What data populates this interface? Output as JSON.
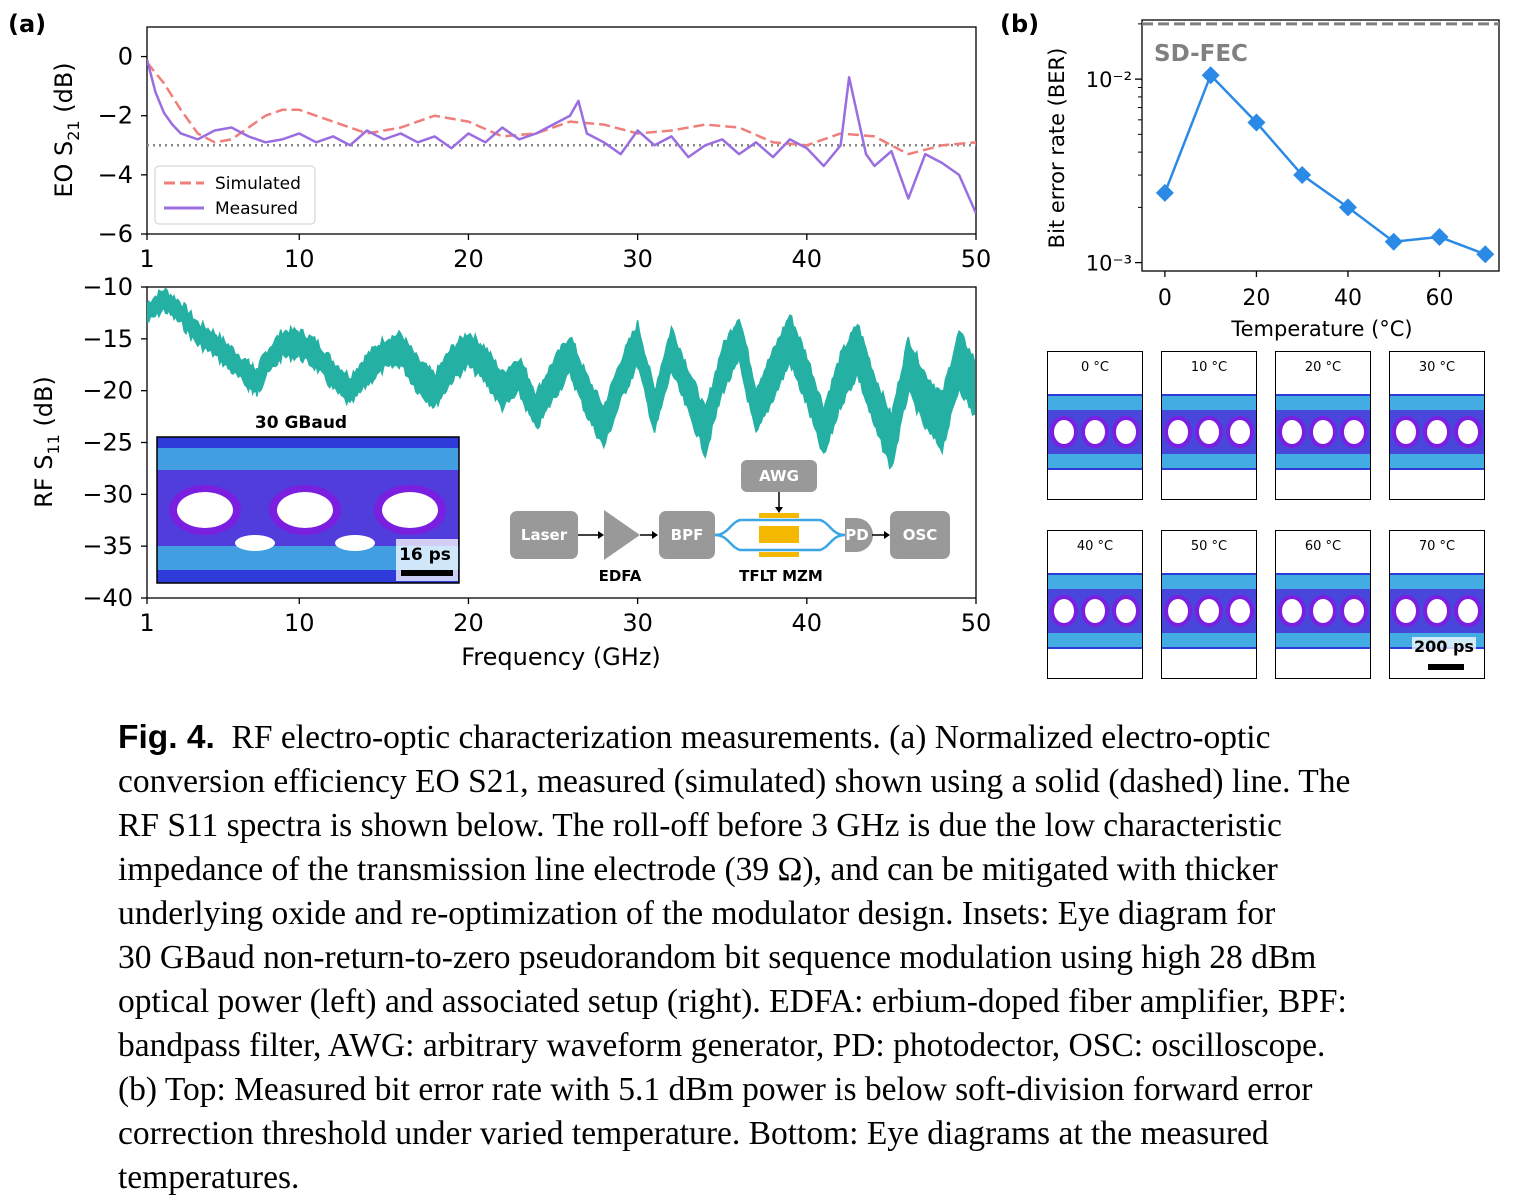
{
  "panel_labels": {
    "a": "(a)",
    "b": "(b)"
  },
  "colors": {
    "simulated": "#ef7f7a",
    "measured": "#9a6ee0",
    "rf": "#24b0a3",
    "ber": "#2b8ae6",
    "threshold_dotted": "#888888",
    "sdfec": "#808080",
    "setup_box": "#999999",
    "modulator": "#f5b800",
    "waveguide": "#3aa6e6"
  },
  "chart_data": [
    {
      "id": "eo_s21",
      "type": "line",
      "xlabel": "",
      "ylabel": "EO S21 (dB)",
      "ylabel_main": "EO S",
      "ylabel_sub": "21",
      "ylabel_unit": " (dB)",
      "xlim": [
        1,
        50
      ],
      "ylim": [
        -6,
        1
      ],
      "xticks": [
        1,
        10,
        20,
        30,
        40,
        50
      ],
      "yticks": [
        0,
        -2,
        -4,
        -6
      ],
      "ytick_labels": [
        "0",
        "−2",
        "−4",
        "−6"
      ],
      "reference_line": {
        "y": -3,
        "style": "dotted"
      },
      "legend": {
        "placement": "lower-left",
        "entries": [
          "Simulated",
          "Measured"
        ]
      },
      "series": [
        {
          "name": "Simulated",
          "style": "dashed",
          "x": [
            1,
            2,
            3,
            4,
            5,
            6,
            7,
            8,
            9,
            10,
            12,
            14,
            16,
            18,
            20,
            22,
            24,
            26,
            28,
            30,
            32,
            34,
            36,
            38,
            40,
            42,
            44,
            46,
            48,
            50
          ],
          "y": [
            -0.2,
            -0.9,
            -1.8,
            -2.6,
            -2.9,
            -2.8,
            -2.4,
            -2.0,
            -1.8,
            -1.8,
            -2.2,
            -2.6,
            -2.4,
            -2.0,
            -2.2,
            -2.7,
            -2.6,
            -2.2,
            -2.3,
            -2.6,
            -2.5,
            -2.3,
            -2.4,
            -2.9,
            -3.0,
            -2.6,
            -2.7,
            -3.3,
            -3.0,
            -2.9
          ]
        },
        {
          "name": "Measured",
          "style": "solid",
          "x": [
            1,
            1.5,
            2,
            2.5,
            3,
            4,
            5,
            6,
            7,
            8,
            9,
            10,
            11,
            12,
            13,
            14,
            15,
            16,
            17,
            18,
            19,
            20,
            21,
            22,
            23,
            24,
            25,
            26,
            26.5,
            27,
            28,
            29,
            30,
            31,
            32,
            33,
            34,
            35,
            36,
            37,
            38,
            39,
            40,
            41,
            42,
            42.5,
            43,
            43.5,
            44,
            45,
            46,
            47,
            48,
            49,
            50
          ],
          "y": [
            -0.1,
            -1.2,
            -1.9,
            -2.3,
            -2.6,
            -2.8,
            -2.5,
            -2.4,
            -2.7,
            -2.9,
            -2.8,
            -2.6,
            -2.9,
            -2.7,
            -3.0,
            -2.5,
            -2.8,
            -2.6,
            -2.9,
            -2.7,
            -3.1,
            -2.6,
            -2.9,
            -2.4,
            -2.8,
            -2.6,
            -2.3,
            -2.0,
            -1.5,
            -2.6,
            -2.9,
            -3.3,
            -2.5,
            -3.0,
            -2.7,
            -3.4,
            -3.0,
            -2.8,
            -3.3,
            -2.9,
            -3.4,
            -2.8,
            -3.1,
            -3.7,
            -3.0,
            -0.7,
            -2.0,
            -3.3,
            -3.7,
            -3.2,
            -4.8,
            -3.3,
            -3.6,
            -4.0,
            -5.3
          ]
        }
      ]
    },
    {
      "id": "rf_s11",
      "type": "line",
      "xlabel": "Frequency (GHz)",
      "ylabel": "RF S11 (dB)",
      "ylabel_main": "RF S",
      "ylabel_sub": "11",
      "ylabel_unit": " (dB)",
      "xlim": [
        1,
        50
      ],
      "ylim": [
        -40,
        -10
      ],
      "xticks": [
        1,
        10,
        20,
        30,
        40,
        50
      ],
      "yticks": [
        -10,
        -15,
        -20,
        -25,
        -30,
        -35,
        -40
      ],
      "ytick_labels": [
        "−10",
        "−15",
        "−20",
        "−25",
        "−30",
        "−35",
        "−40"
      ],
      "series": [
        {
          "name": "",
          "x": [
            1,
            2,
            3,
            4,
            5,
            6,
            7,
            7.5,
            8,
            9,
            10,
            11,
            12,
            13,
            14,
            15,
            16,
            17,
            18,
            19,
            20,
            21,
            22,
            23,
            24,
            25,
            26,
            27,
            28,
            29,
            30,
            31,
            32,
            33,
            34,
            35,
            36,
            37,
            38,
            39,
            40,
            41,
            42,
            43,
            44,
            45,
            46,
            47,
            48,
            49,
            50
          ],
          "y": [
            -12.5,
            -11.2,
            -12.5,
            -14.5,
            -15.5,
            -17,
            -18.5,
            -19.2,
            -17.5,
            -15.5,
            -15.5,
            -16.5,
            -18.5,
            -20,
            -18,
            -16.5,
            -16,
            -18.5,
            -20,
            -17.5,
            -16,
            -17.5,
            -20,
            -18.5,
            -22,
            -19,
            -16.5,
            -20.5,
            -23.5,
            -19,
            -15.5,
            -22,
            -16,
            -20,
            -24,
            -18,
            -15,
            -22,
            -18.5,
            -15,
            -19,
            -24,
            -19,
            -16,
            -21,
            -25,
            -17.5,
            -21,
            -23,
            -17,
            -20
          ]
        }
      ]
    },
    {
      "id": "ber",
      "type": "line",
      "xlabel": "Temperature (°C)",
      "ylabel": "Bit error rate (BER)",
      "scale": "log",
      "xlim": [
        -5,
        73
      ],
      "ylim": [
        0.0009,
        0.021
      ],
      "xticks": [
        0,
        20,
        40,
        60
      ],
      "ytick_labels": [
        "10⁻²",
        "10⁻³"
      ],
      "threshold": {
        "label": "SD-FEC",
        "y": 0.02,
        "style": "dashed"
      },
      "series": [
        {
          "name": "",
          "x": [
            0,
            10,
            20,
            30,
            40,
            50,
            60,
            70
          ],
          "y": [
            0.0024,
            0.0105,
            0.0058,
            0.003,
            0.002,
            0.0013,
            0.00138,
            0.00111
          ]
        }
      ]
    }
  ],
  "inset_eye": {
    "title": "30 GBaud",
    "scalebar": "16 ps"
  },
  "setup": {
    "laser": "Laser",
    "edfa": "EDFA",
    "bpf": "BPF",
    "awg": "AWG",
    "mzm": "TFLT MZM",
    "pd": "PD",
    "osc": "OSC"
  },
  "eye_diagrams": {
    "temperatures": [
      "0 °C",
      "10 °C",
      "20 °C",
      "30 °C",
      "40 °C",
      "50 °C",
      "60 °C",
      "70 °C"
    ],
    "scalebar": "200 ps"
  },
  "caption": {
    "fig_label": "Fig. 4.",
    "lines": [
      "RF electro-optic characterization measurements. (a) Normalized electro-optic",
      "conversion efficiency EO S21, measured (simulated) shown using a solid (dashed) line. The",
      "RF S11 spectra is shown below. The roll-off before 3 GHz is due the low characteristic",
      "impedance of the transmission line electrode (39 Ω), and can be mitigated with thicker",
      "underlying oxide and re-optimization of the modulator design. Insets: Eye diagram for",
      "30 GBaud non-return-to-zero pseudorandom bit sequence modulation using high 28 dBm",
      "optical power (left) and associated setup (right). EDFA: erbium-doped fiber amplifier, BPF:",
      "bandpass filter, AWG: arbitrary waveform generator, PD: photodector, OSC: oscilloscope.",
      "(b) Top: Measured bit error rate with 5.1 dBm power is below soft-division forward error",
      "correction threshold under varied temperature. Bottom: Eye diagrams at the measured",
      "temperatures."
    ]
  }
}
